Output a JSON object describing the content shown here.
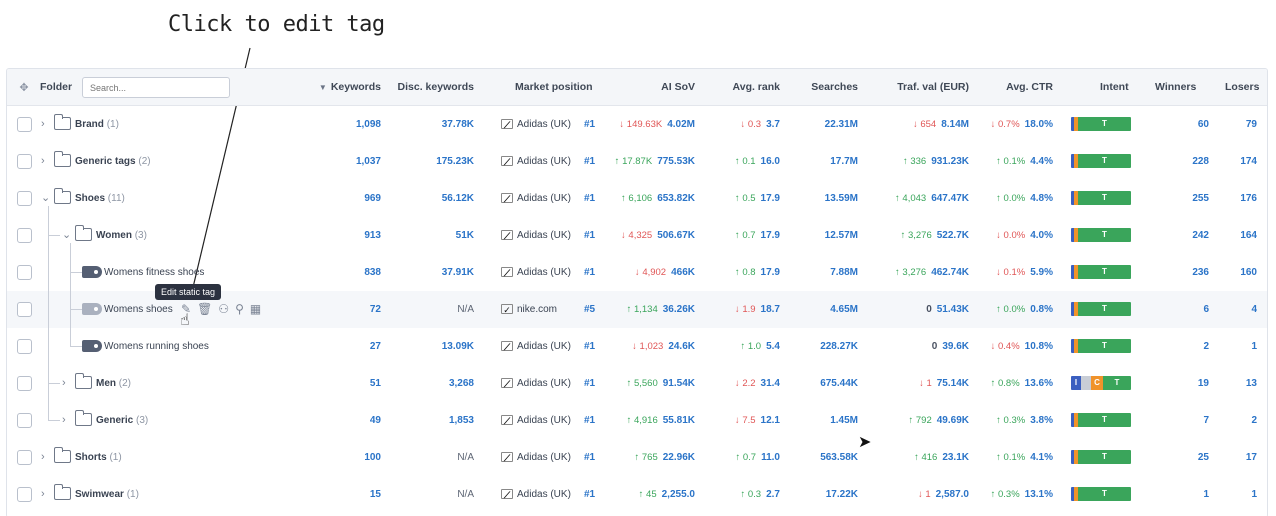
{
  "annotation": "Click to edit tag",
  "header": {
    "folder": "Folder",
    "search_placeholder": "Search...",
    "keywords": "Keywords",
    "disc_keywords": "Disc. keywords",
    "market_position": "Market position",
    "ai_sov": "AI SoV",
    "avg_rank": "Avg. rank",
    "searches": "Searches",
    "traf_val": "Traf. val (EUR)",
    "avg_ctr": "Avg. CTR",
    "intent": "Intent",
    "winners": "Winners",
    "losers": "Losers"
  },
  "tooltip": "Edit static tag",
  "colors": {
    "accent": "#2b74c8",
    "up": "#3aa55b",
    "down": "#e05656",
    "intent_green": "#3aa55b",
    "intent_orange": "#f0932b",
    "intent_blue": "#3b5fc0"
  },
  "rows": [
    {
      "name": "Brand",
      "count": "(1)",
      "keywords": "1,098",
      "disc": "37.78K",
      "mp_name": "Adidas (UK)",
      "mp_rank": "#1",
      "sov_delta": "149.63K",
      "sov_dir": "down",
      "sov": "4.02M",
      "rank_delta": "0.3",
      "rank_dir": "down",
      "rank": "3.7",
      "searches": "22.31M",
      "traf_delta": "654",
      "traf_dir": "down",
      "traf": "8.14M",
      "ctr_delta": "0.7%",
      "ctr_dir": "down",
      "ctr": "18.0%",
      "intent_label": "T",
      "winners": "60",
      "losers": "79"
    },
    {
      "name": "Generic tags",
      "count": "(2)",
      "keywords": "1,037",
      "disc": "175.23K",
      "mp_name": "Adidas (UK)",
      "mp_rank": "#1",
      "sov_delta": "17.87K",
      "sov_dir": "up",
      "sov": "775.53K",
      "rank_delta": "0.1",
      "rank_dir": "up",
      "rank": "16.0",
      "searches": "17.7M",
      "traf_delta": "336",
      "traf_dir": "up",
      "traf": "931.23K",
      "ctr_delta": "0.1%",
      "ctr_dir": "up",
      "ctr": "4.4%",
      "intent_label": "T",
      "winners": "228",
      "losers": "174"
    },
    {
      "name": "Shoes",
      "count": "(11)",
      "keywords": "969",
      "disc": "56.12K",
      "mp_name": "Adidas (UK)",
      "mp_rank": "#1",
      "sov_delta": "6,106",
      "sov_dir": "up",
      "sov": "653.82K",
      "rank_delta": "0.5",
      "rank_dir": "up",
      "rank": "17.9",
      "searches": "13.59M",
      "traf_delta": "4,043",
      "traf_dir": "up",
      "traf": "647.47K",
      "ctr_delta": "0.0%",
      "ctr_dir": "up",
      "ctr": "4.8%",
      "intent_label": "T",
      "winners": "255",
      "losers": "176"
    },
    {
      "name": "Women",
      "count": "(3)",
      "keywords": "913",
      "disc": "51K",
      "mp_name": "Adidas (UK)",
      "mp_rank": "#1",
      "sov_delta": "4,325",
      "sov_dir": "down",
      "sov": "506.67K",
      "rank_delta": "0.7",
      "rank_dir": "up",
      "rank": "17.9",
      "searches": "12.57M",
      "traf_delta": "3,276",
      "traf_dir": "up",
      "traf": "522.7K",
      "ctr_delta": "0.0%",
      "ctr_dir": "down",
      "ctr": "4.0%",
      "intent_label": "T",
      "winners": "242",
      "losers": "164"
    },
    {
      "name": "Womens fitness shoes",
      "count": "",
      "keywords": "838",
      "disc": "37.91K",
      "mp_name": "Adidas (UK)",
      "mp_rank": "#1",
      "sov_delta": "4,902",
      "sov_dir": "down",
      "sov": "466K",
      "rank_delta": "0.8",
      "rank_dir": "up",
      "rank": "17.9",
      "searches": "7.88M",
      "traf_delta": "3,276",
      "traf_dir": "up",
      "traf": "462.74K",
      "ctr_delta": "0.1%",
      "ctr_dir": "down",
      "ctr": "5.9%",
      "intent_label": "T",
      "winners": "236",
      "losers": "160"
    },
    {
      "name": "Womens shoes",
      "count": "",
      "keywords": "72",
      "disc": "N/A",
      "mp_name": "nike.com",
      "mp_rank": "#5",
      "sov_delta": "1,134",
      "sov_dir": "up",
      "sov": "36.26K",
      "rank_delta": "1.9",
      "rank_dir": "down",
      "rank": "18.7",
      "searches": "4.65M",
      "traf_delta": "0",
      "traf_dir": "zero",
      "traf": "51.43K",
      "ctr_delta": "0.0%",
      "ctr_dir": "up",
      "ctr": "0.8%",
      "intent_label": "T",
      "winners": "6",
      "losers": "4"
    },
    {
      "name": "Womens running shoes",
      "count": "",
      "keywords": "27",
      "disc": "13.09K",
      "mp_name": "Adidas (UK)",
      "mp_rank": "#1",
      "sov_delta": "1,023",
      "sov_dir": "down",
      "sov": "24.6K",
      "rank_delta": "1.0",
      "rank_dir": "up",
      "rank": "5.4",
      "searches": "228.27K",
      "traf_delta": "0",
      "traf_dir": "zero",
      "traf": "39.6K",
      "ctr_delta": "0.4%",
      "ctr_dir": "down",
      "ctr": "10.8%",
      "intent_label": "T",
      "winners": "2",
      "losers": "1"
    },
    {
      "name": "Men",
      "count": "(2)",
      "keywords": "51",
      "disc": "3,268",
      "mp_name": "Adidas (UK)",
      "mp_rank": "#1",
      "sov_delta": "5,560",
      "sov_dir": "up",
      "sov": "91.54K",
      "rank_delta": "2.2",
      "rank_dir": "down",
      "rank": "31.4",
      "searches": "675.44K",
      "traf_delta": "1",
      "traf_dir": "down",
      "traf": "75.14K",
      "ctr_delta": "0.8%",
      "ctr_dir": "up",
      "ctr": "13.6%",
      "intent_label": "T",
      "winners": "19",
      "losers": "13"
    },
    {
      "name": "Generic",
      "count": "(3)",
      "keywords": "49",
      "disc": "1,853",
      "mp_name": "Adidas (UK)",
      "mp_rank": "#1",
      "sov_delta": "4,916",
      "sov_dir": "up",
      "sov": "55.81K",
      "rank_delta": "7.5",
      "rank_dir": "down",
      "rank": "12.1",
      "searches": "1.45M",
      "traf_delta": "792",
      "traf_dir": "up",
      "traf": "49.69K",
      "ctr_delta": "0.3%",
      "ctr_dir": "up",
      "ctr": "3.8%",
      "intent_label": "T",
      "winners": "7",
      "losers": "2"
    },
    {
      "name": "Shorts",
      "count": "(1)",
      "keywords": "100",
      "disc": "N/A",
      "mp_name": "Adidas (UK)",
      "mp_rank": "#1",
      "sov_delta": "765",
      "sov_dir": "up",
      "sov": "22.96K",
      "rank_delta": "0.7",
      "rank_dir": "up",
      "rank": "11.0",
      "searches": "563.58K",
      "traf_delta": "416",
      "traf_dir": "up",
      "traf": "23.1K",
      "ctr_delta": "0.1%",
      "ctr_dir": "up",
      "ctr": "4.1%",
      "intent_label": "T",
      "winners": "25",
      "losers": "17"
    },
    {
      "name": "Swimwear",
      "count": "(1)",
      "keywords": "15",
      "disc": "N/A",
      "mp_name": "Adidas (UK)",
      "mp_rank": "#1",
      "sov_delta": "45",
      "sov_dir": "up",
      "sov": "2,255.0",
      "rank_delta": "0.3",
      "rank_dir": "up",
      "rank": "2.7",
      "searches": "17.22K",
      "traf_delta": "1",
      "traf_dir": "down",
      "traf": "2,587.0",
      "ctr_delta": "0.3%",
      "ctr_dir": "up",
      "ctr": "13.1%",
      "intent_label": "T",
      "winners": "1",
      "losers": "1"
    }
  ],
  "men_intent_labels": [
    "I",
    "C",
    "T"
  ]
}
